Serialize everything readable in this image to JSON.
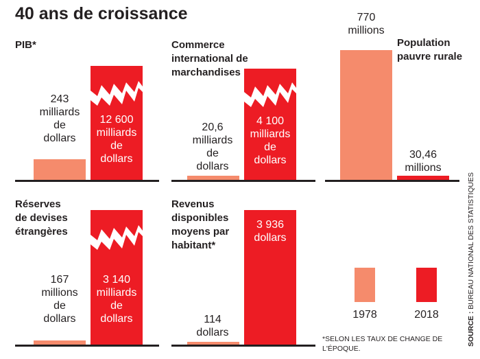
{
  "title": "40 ans de croissance",
  "legend": {
    "y1978": "1978",
    "y2018": "2018"
  },
  "colors": {
    "y1978": "#f58b6c",
    "y2018": "#ed1c24",
    "axis": "#231f20"
  },
  "note": "*SELON LES TAUX DE CHANGE DE L'ÉPOQUE.",
  "source": {
    "label": "SOURCE :",
    "text": "BUREAU NATIONAL DES STATISTIQUES"
  },
  "panels": {
    "pib": {
      "title": "PIB*",
      "v1978": [
        "243",
        "milliards",
        "de",
        "dollars"
      ],
      "v2018": [
        "12 600",
        "milliards",
        "de",
        "dollars"
      ]
    },
    "commerce": {
      "title": [
        "Commerce",
        "international de",
        "marchandises"
      ],
      "v1978": [
        "20,6",
        "milliards",
        "de",
        "dollars"
      ],
      "v2018": [
        "4 100",
        "milliards",
        "de",
        "dollars"
      ]
    },
    "pauvre": {
      "title": [
        "Population",
        "pauvre rurale"
      ],
      "v1978": [
        "770",
        "millions"
      ],
      "v2018": [
        "30,46",
        "millions"
      ]
    },
    "reserves": {
      "title": [
        "Réserves",
        "de devises",
        "étrangères"
      ],
      "v1978": [
        "167",
        "millions",
        "de",
        "dollars"
      ],
      "v2018": [
        "3 140",
        "milliards",
        "de",
        "dollars"
      ]
    },
    "revenus": {
      "title": [
        "Revenus",
        "disponibles",
        "moyens par",
        "habitant*"
      ],
      "v1978": [
        "114",
        "dollars"
      ],
      "v2018": [
        "3 936",
        "dollars"
      ]
    }
  },
  "chart_data": [
    {
      "type": "bar",
      "title": "PIB*",
      "categories": [
        "1978",
        "2018"
      ],
      "values": [
        243,
        12600
      ],
      "unit": "milliards de dollars",
      "axis_break": true
    },
    {
      "type": "bar",
      "title": "Commerce international de marchandises",
      "categories": [
        "1978",
        "2018"
      ],
      "values": [
        20.6,
        4100
      ],
      "unit": "milliards de dollars",
      "axis_break": true
    },
    {
      "type": "bar",
      "title": "Population pauvre rurale",
      "categories": [
        "1978",
        "2018"
      ],
      "values": [
        770,
        30.46
      ],
      "unit": "millions"
    },
    {
      "type": "bar",
      "title": "Réserves de devises étrangères",
      "categories": [
        "1978",
        "2018"
      ],
      "values": [
        0.167,
        3140
      ],
      "unit": "milliards de dollars",
      "axis_break": true
    },
    {
      "type": "bar",
      "title": "Revenus disponibles moyens par habitant*",
      "categories": [
        "1978",
        "2018"
      ],
      "values": [
        114,
        3936
      ],
      "unit": "dollars"
    }
  ]
}
